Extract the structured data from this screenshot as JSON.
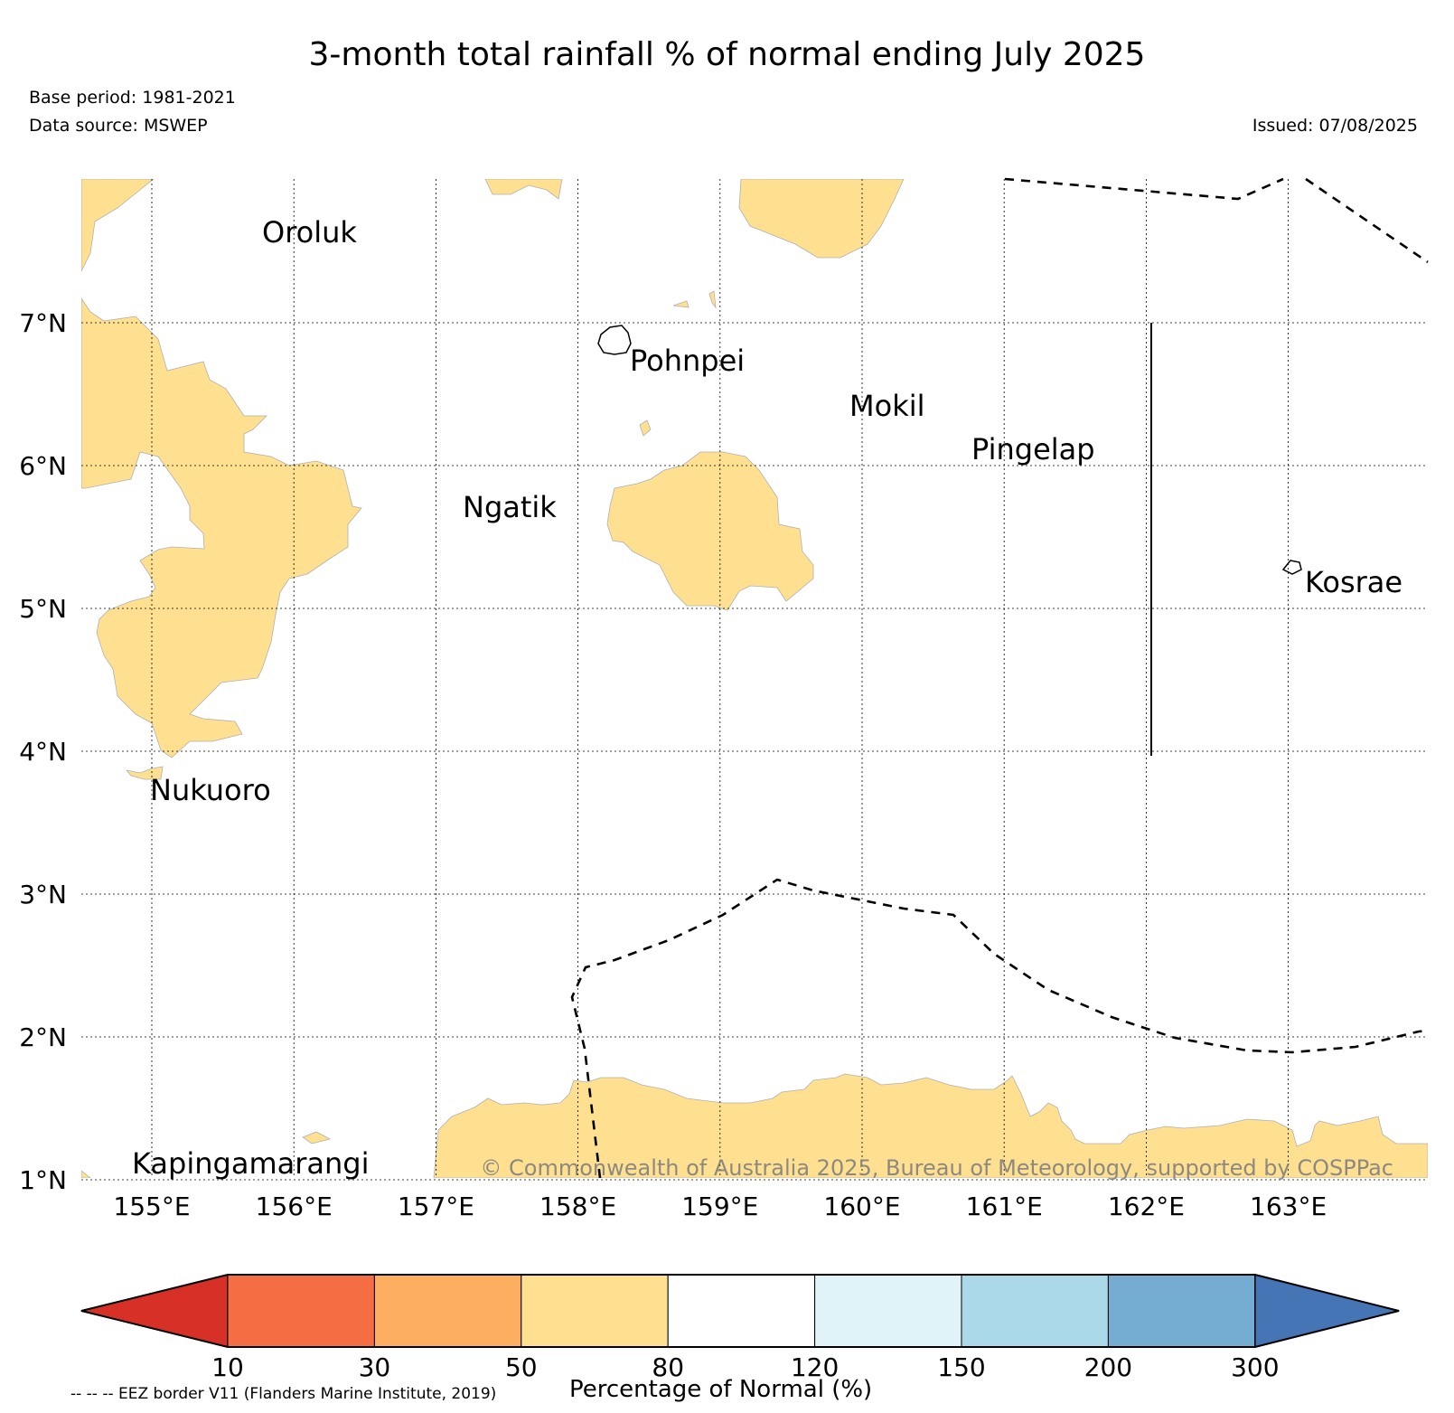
{
  "title": "3-month total rainfall % of normal ending July 2025",
  "base_period": "Base period: 1981-2021",
  "data_source": "Data source: MSWEP",
  "issued": "Issued: 07/08/2025",
  "copyright": "© Commonwealth of Australia 2025, Bureau of Meteorology, supported by COSPPac",
  "eez_note": "-- -- -- EEZ border V11 (Flanders Marine Institute, 2019)",
  "colorbar": {
    "label": "Percentage of Normal (%)",
    "ticks": [
      "10",
      "30",
      "50",
      "80",
      "120",
      "150",
      "200",
      "300"
    ],
    "colors": [
      "#d73027",
      "#f46d43",
      "#fdae61",
      "#fee090",
      "#ffffff",
      "#e0f3f8",
      "#abd9e9",
      "#74add1",
      "#4575b4"
    ]
  },
  "map": {
    "lon_labels": [
      "155°E",
      "156°E",
      "157°E",
      "158°E",
      "159°E",
      "160°E",
      "161°E",
      "162°E",
      "163°E"
    ],
    "lat_labels": [
      "7°N",
      "6°N",
      "5°N",
      "4°N",
      "3°N",
      "2°N",
      "1°N"
    ],
    "places": [
      "Oroluk",
      "Pohnpei",
      "Mokil",
      "Pingelap",
      "Ngatik",
      "Kosrae",
      "Nukuoro",
      "Kapingamarangi"
    ],
    "shaded_category": "50-80",
    "shaded_color": "#fee090"
  }
}
